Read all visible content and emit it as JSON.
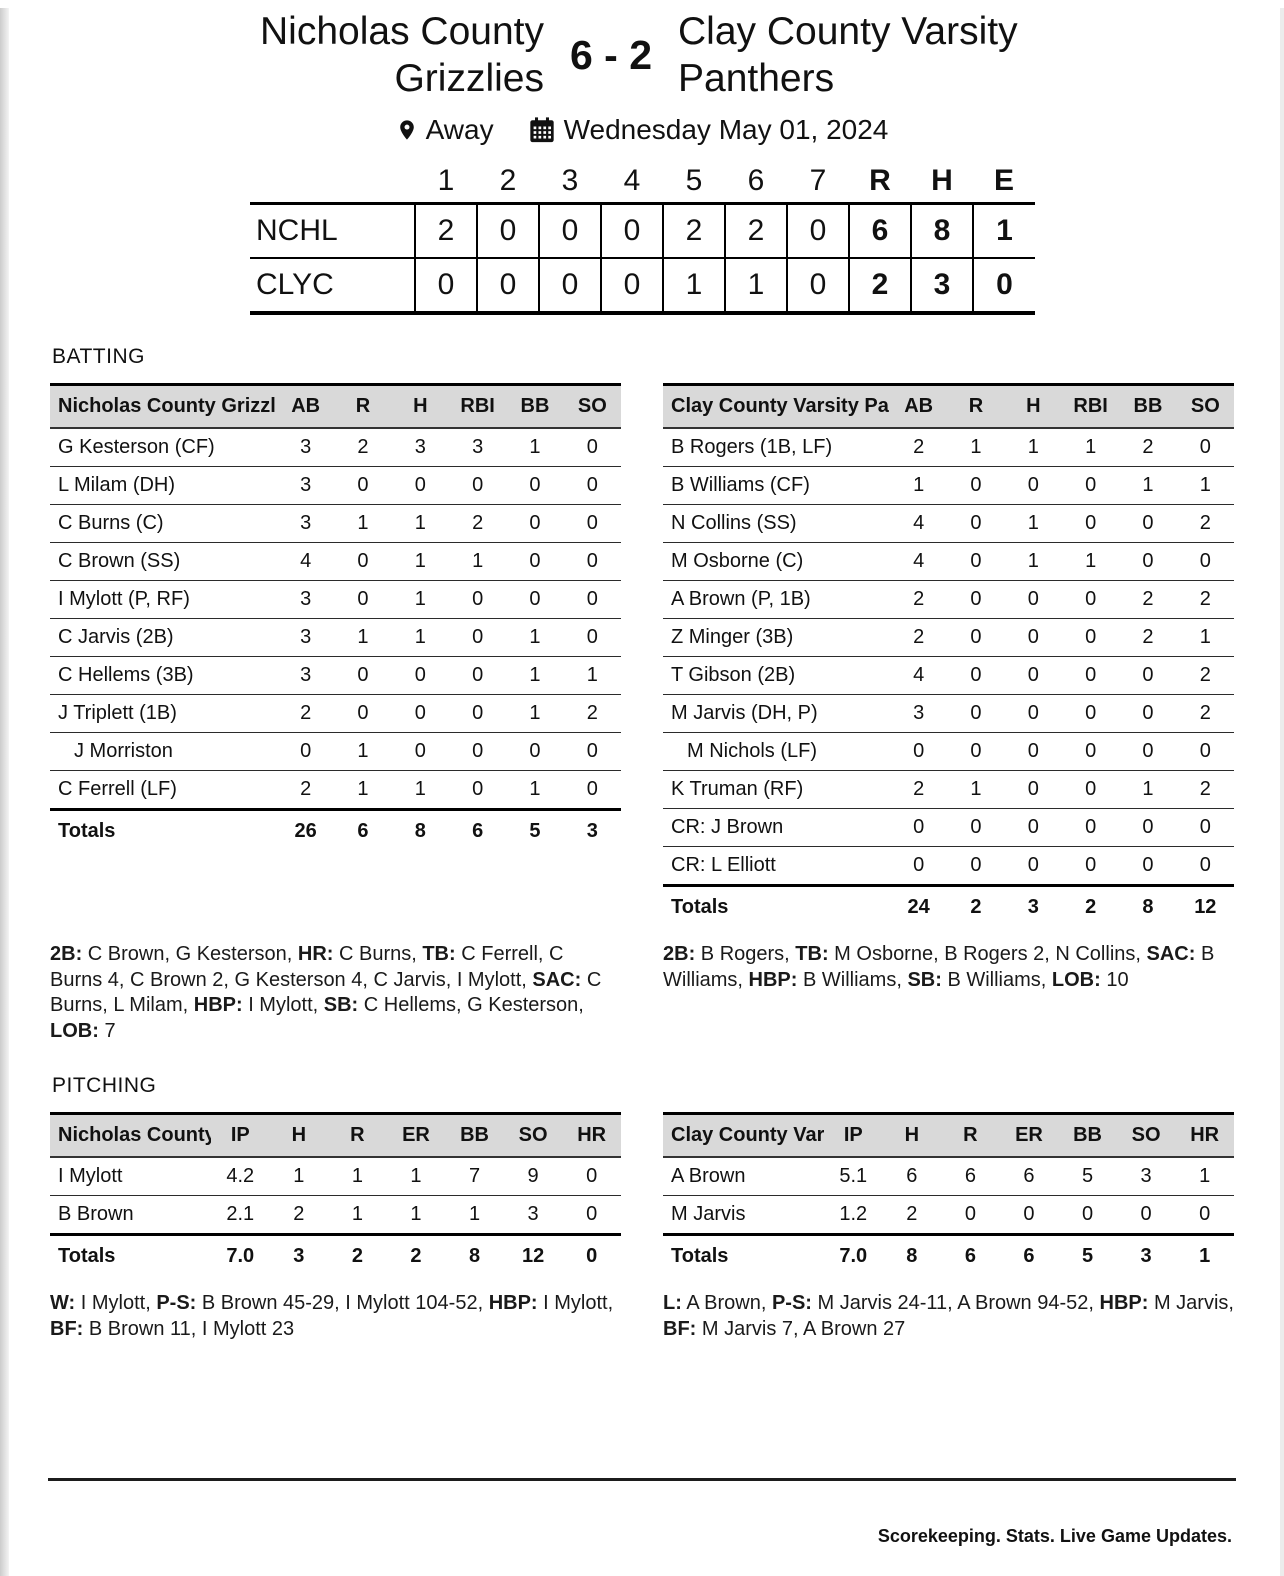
{
  "header": {
    "team_left": "Nicholas County Grizzlies",
    "team_right": "Clay County Varsity Panthers",
    "score": "6 - 2",
    "location": "Away",
    "date": "Wednesday May 01, 2024"
  },
  "line_score": {
    "columns": [
      "1",
      "2",
      "3",
      "4",
      "5",
      "6",
      "7",
      "R",
      "H",
      "E"
    ],
    "teams": [
      {
        "abbr": "NCHL",
        "innings": [
          "2",
          "0",
          "0",
          "0",
          "2",
          "2",
          "0"
        ],
        "R": "6",
        "H": "8",
        "E": "1"
      },
      {
        "abbr": "CLYC",
        "innings": [
          "0",
          "0",
          "0",
          "0",
          "1",
          "1",
          "0"
        ],
        "R": "2",
        "H": "3",
        "E": "0"
      }
    ]
  },
  "batting": {
    "section_label": "BATTING",
    "columns": [
      "AB",
      "R",
      "H",
      "RBI",
      "BB",
      "SO"
    ],
    "left": {
      "team_header": "Nicholas County Grizzlies",
      "rows": [
        {
          "player": "G Kesterson (CF)",
          "sub": false,
          "stats": [
            "3",
            "2",
            "3",
            "3",
            "1",
            "0"
          ]
        },
        {
          "player": "L Milam (DH)",
          "sub": false,
          "stats": [
            "3",
            "0",
            "0",
            "0",
            "0",
            "0"
          ]
        },
        {
          "player": "C Burns (C)",
          "sub": false,
          "stats": [
            "3",
            "1",
            "1",
            "2",
            "0",
            "0"
          ]
        },
        {
          "player": "C Brown (SS)",
          "sub": false,
          "stats": [
            "4",
            "0",
            "1",
            "1",
            "0",
            "0"
          ]
        },
        {
          "player": "I Mylott (P, RF)",
          "sub": false,
          "stats": [
            "3",
            "0",
            "1",
            "0",
            "0",
            "0"
          ]
        },
        {
          "player": "C Jarvis (2B)",
          "sub": false,
          "stats": [
            "3",
            "1",
            "1",
            "0",
            "1",
            "0"
          ]
        },
        {
          "player": "C Hellems (3B)",
          "sub": false,
          "stats": [
            "3",
            "0",
            "0",
            "0",
            "1",
            "1"
          ]
        },
        {
          "player": "J Triplett (1B)",
          "sub": false,
          "stats": [
            "2",
            "0",
            "0",
            "0",
            "1",
            "2"
          ]
        },
        {
          "player": "J Morriston",
          "sub": true,
          "stats": [
            "0",
            "1",
            "0",
            "0",
            "0",
            "0"
          ]
        },
        {
          "player": "C Ferrell (LF)",
          "sub": false,
          "stats": [
            "2",
            "1",
            "1",
            "0",
            "1",
            "0"
          ]
        }
      ],
      "totals": {
        "label": "Totals",
        "stats": [
          "26",
          "6",
          "8",
          "6",
          "5",
          "3"
        ]
      },
      "notes": [
        {
          "b": "2B:"
        },
        {
          "t": " C Brown, G Kesterson, "
        },
        {
          "b": "HR:"
        },
        {
          "t": " C Burns, "
        },
        {
          "b": "TB:"
        },
        {
          "t": " C Ferrell, C Burns 4, C Brown 2, G Kesterson 4, C Jarvis, I Mylott, "
        },
        {
          "b": "SAC:"
        },
        {
          "t": " C Burns, L Milam, "
        },
        {
          "b": "HBP:"
        },
        {
          "t": " I Mylott, "
        },
        {
          "b": "SB:"
        },
        {
          "t": " C Hellems, G Kesterson, "
        },
        {
          "b": "LOB:"
        },
        {
          "t": " 7"
        }
      ]
    },
    "right": {
      "team_header": "Clay County Varsity Panthers",
      "rows": [
        {
          "player": "B Rogers (1B, LF)",
          "sub": false,
          "stats": [
            "2",
            "1",
            "1",
            "1",
            "2",
            "0"
          ]
        },
        {
          "player": "B Williams (CF)",
          "sub": false,
          "stats": [
            "1",
            "0",
            "0",
            "0",
            "1",
            "1"
          ]
        },
        {
          "player": "N Collins (SS)",
          "sub": false,
          "stats": [
            "4",
            "0",
            "1",
            "0",
            "0",
            "2"
          ]
        },
        {
          "player": "M Osborne (C)",
          "sub": false,
          "stats": [
            "4",
            "0",
            "1",
            "1",
            "0",
            "0"
          ]
        },
        {
          "player": "A Brown (P, 1B)",
          "sub": false,
          "stats": [
            "2",
            "0",
            "0",
            "0",
            "2",
            "2"
          ]
        },
        {
          "player": "Z Minger (3B)",
          "sub": false,
          "stats": [
            "2",
            "0",
            "0",
            "0",
            "2",
            "1"
          ]
        },
        {
          "player": "T Gibson (2B)",
          "sub": false,
          "stats": [
            "4",
            "0",
            "0",
            "0",
            "0",
            "2"
          ]
        },
        {
          "player": "M Jarvis (DH, P)",
          "sub": false,
          "stats": [
            "3",
            "0",
            "0",
            "0",
            "0",
            "2"
          ]
        },
        {
          "player": "M Nichols (LF)",
          "sub": true,
          "stats": [
            "0",
            "0",
            "0",
            "0",
            "0",
            "0"
          ]
        },
        {
          "player": "K Truman (RF)",
          "sub": false,
          "stats": [
            "2",
            "1",
            "0",
            "0",
            "1",
            "2"
          ]
        },
        {
          "player": "CR: J Brown",
          "sub": false,
          "stats": [
            "0",
            "0",
            "0",
            "0",
            "0",
            "0"
          ]
        },
        {
          "player": "CR: L Elliott",
          "sub": false,
          "stats": [
            "0",
            "0",
            "0",
            "0",
            "0",
            "0"
          ]
        }
      ],
      "totals": {
        "label": "Totals",
        "stats": [
          "24",
          "2",
          "3",
          "2",
          "8",
          "12"
        ]
      },
      "notes": [
        {
          "b": "2B:"
        },
        {
          "t": " B Rogers, "
        },
        {
          "b": "TB:"
        },
        {
          "t": " M Osborne, B Rogers 2, N Collins, "
        },
        {
          "b": "SAC:"
        },
        {
          "t": " B Williams, "
        },
        {
          "b": "HBP:"
        },
        {
          "t": " B Williams, "
        },
        {
          "b": "SB:"
        },
        {
          "t": " B Williams, "
        },
        {
          "b": "LOB:"
        },
        {
          "t": " 10"
        }
      ]
    }
  },
  "pitching": {
    "section_label": "PITCHING",
    "columns": [
      "IP",
      "H",
      "R",
      "ER",
      "BB",
      "SO",
      "HR"
    ],
    "left": {
      "team_header": "Nicholas County Grizzlies",
      "rows": [
        {
          "player": "I Mylott",
          "sub": false,
          "stats": [
            "4.2",
            "1",
            "1",
            "1",
            "7",
            "9",
            "0"
          ]
        },
        {
          "player": "B Brown",
          "sub": false,
          "stats": [
            "2.1",
            "2",
            "1",
            "1",
            "1",
            "3",
            "0"
          ]
        }
      ],
      "totals": {
        "label": "Totals",
        "stats": [
          "7.0",
          "3",
          "2",
          "2",
          "8",
          "12",
          "0"
        ]
      },
      "notes": [
        {
          "b": "W:"
        },
        {
          "t": " I Mylott, "
        },
        {
          "b": "P-S:"
        },
        {
          "t": " B Brown 45-29, I Mylott 104-52, "
        },
        {
          "b": "HBP:"
        },
        {
          "t": " I Mylott, "
        },
        {
          "b": "BF:"
        },
        {
          "t": " B Brown 11, I Mylott 23"
        }
      ]
    },
    "right": {
      "team_header": "Clay County Varsity Panthers",
      "rows": [
        {
          "player": "A Brown",
          "sub": false,
          "stats": [
            "5.1",
            "6",
            "6",
            "6",
            "5",
            "3",
            "1"
          ]
        },
        {
          "player": "M Jarvis",
          "sub": false,
          "stats": [
            "1.2",
            "2",
            "0",
            "0",
            "0",
            "0",
            "0"
          ]
        }
      ],
      "totals": {
        "label": "Totals",
        "stats": [
          "7.0",
          "8",
          "6",
          "6",
          "5",
          "3",
          "1"
        ]
      },
      "notes": [
        {
          "b": "L:"
        },
        {
          "t": " A Brown, "
        },
        {
          "b": "P-S:"
        },
        {
          "t": " M Jarvis 24-11, A Brown 94-52, "
        },
        {
          "b": "HBP:"
        },
        {
          "t": " M Jarvis, "
        },
        {
          "b": "BF:"
        },
        {
          "t": " M Jarvis 7, A Brown 27"
        }
      ]
    }
  },
  "footer": {
    "tagline": "Scorekeeping. Stats. Live Game Updates."
  },
  "colors": {
    "header_row_bg": "#d9d9d9",
    "rule": "#000000",
    "text": "#111111"
  }
}
